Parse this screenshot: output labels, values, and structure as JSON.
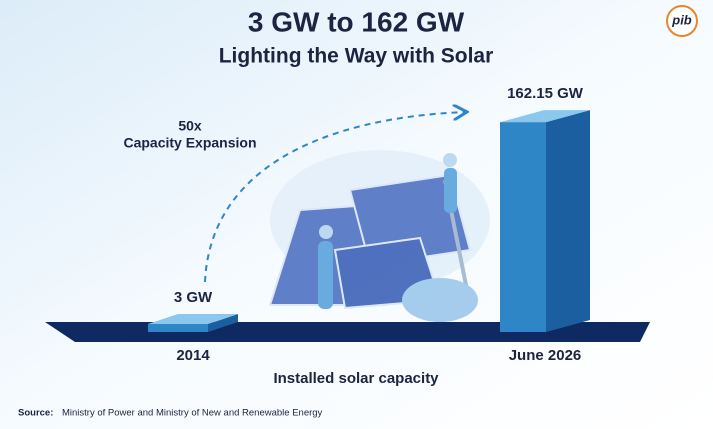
{
  "chart_data": {
    "type": "bar3d",
    "title": "3 GW to 162 GW",
    "subtitle": "Lighting the Way with Solar",
    "annotation": [
      "50x",
      "Capacity Expansion"
    ],
    "categories": [
      "2014",
      "June 2026"
    ],
    "values": [
      3,
      162.15
    ],
    "value_labels": [
      "3 GW",
      "162.15 GW"
    ],
    "x_label": "Installed solar capacity",
    "color": "#2f86c6",
    "ylim": [
      0,
      170
    ],
    "source_label": "Source:",
    "source": "Ministry of Power and Ministry of New and Renewable Energy",
    "logo": "pib"
  }
}
